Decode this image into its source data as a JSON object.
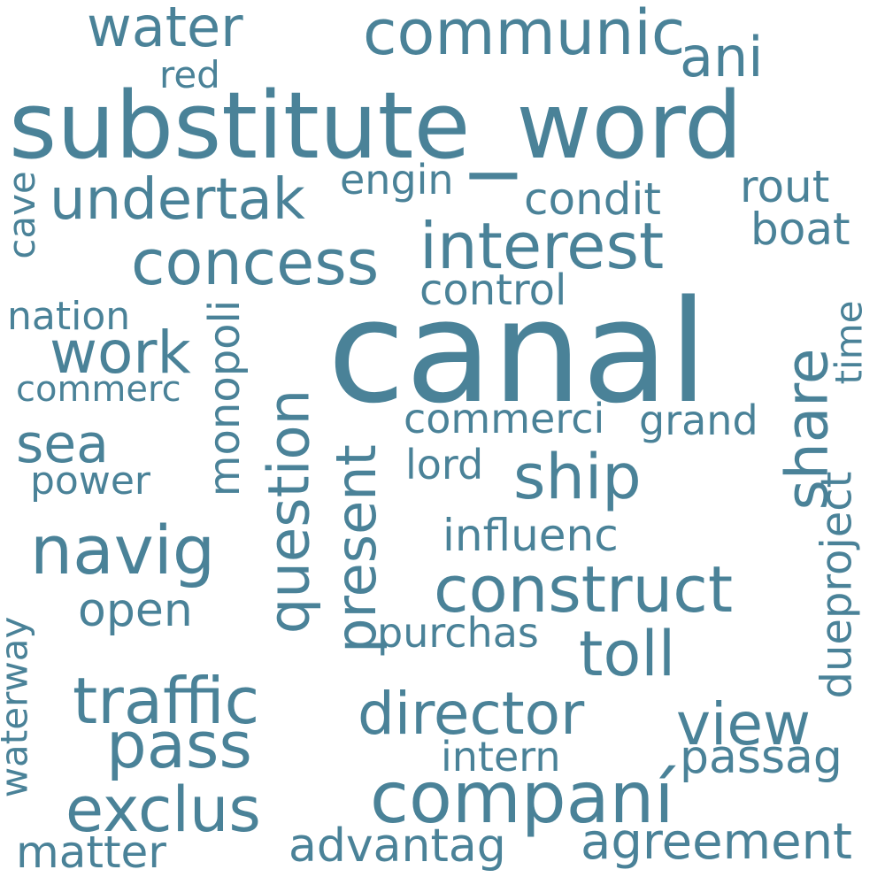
{
  "color": "#4a8298",
  "words": [
    {
      "text": "canal",
      "orientation": "horizontal"
    },
    {
      "text": "substitute_word",
      "orientation": "horizontal"
    },
    {
      "text": "companí",
      "orientation": "horizontal"
    },
    {
      "text": "communic",
      "orientation": "horizontal"
    },
    {
      "text": "water",
      "orientation": "horizontal"
    },
    {
      "text": "ani",
      "orientation": "horizontal"
    },
    {
      "text": "red",
      "orientation": "horizontal"
    },
    {
      "text": "engin",
      "orientation": "horizontal"
    },
    {
      "text": "undertak",
      "orientation": "horizontal"
    },
    {
      "text": "condit",
      "orientation": "horizontal"
    },
    {
      "text": "rout",
      "orientation": "horizontal"
    },
    {
      "text": "boat",
      "orientation": "horizontal"
    },
    {
      "text": "interest",
      "orientation": "horizontal"
    },
    {
      "text": "concess",
      "orientation": "horizontal"
    },
    {
      "text": "control",
      "orientation": "horizontal"
    },
    {
      "text": "nation",
      "orientation": "horizontal"
    },
    {
      "text": "work",
      "orientation": "horizontal"
    },
    {
      "text": "commerc",
      "orientation": "horizontal"
    },
    {
      "text": "sea",
      "orientation": "horizontal"
    },
    {
      "text": "power",
      "orientation": "horizontal"
    },
    {
      "text": "commerci",
      "orientation": "horizontal"
    },
    {
      "text": "grand",
      "orientation": "horizontal"
    },
    {
      "text": "lord",
      "orientation": "horizontal"
    },
    {
      "text": "ship",
      "orientation": "horizontal"
    },
    {
      "text": "navig",
      "orientation": "horizontal"
    },
    {
      "text": "influenc",
      "orientation": "horizontal"
    },
    {
      "text": "construct",
      "orientation": "horizontal"
    },
    {
      "text": "open",
      "orientation": "horizontal"
    },
    {
      "text": "purchas",
      "orientation": "horizontal"
    },
    {
      "text": "toll",
      "orientation": "horizontal"
    },
    {
      "text": "traffic",
      "orientation": "horizontal"
    },
    {
      "text": "director",
      "orientation": "horizontal"
    },
    {
      "text": "view",
      "orientation": "horizontal"
    },
    {
      "text": "pass",
      "orientation": "horizontal"
    },
    {
      "text": "intern",
      "orientation": "horizontal"
    },
    {
      "text": "passag",
      "orientation": "horizontal"
    },
    {
      "text": "exclus",
      "orientation": "horizontal"
    },
    {
      "text": "agreement",
      "orientation": "horizontal"
    },
    {
      "text": "matter",
      "orientation": "horizontal"
    },
    {
      "text": "advantag",
      "orientation": "horizontal"
    },
    {
      "text": "cave",
      "orientation": "vertical"
    },
    {
      "text": "monopoli",
      "orientation": "vertical"
    },
    {
      "text": "question",
      "orientation": "vertical"
    },
    {
      "text": "present",
      "orientation": "vertical"
    },
    {
      "text": "share",
      "orientation": "vertical"
    },
    {
      "text": "time",
      "orientation": "vertical"
    },
    {
      "text": "dueproject",
      "orientation": "vertical"
    },
    {
      "text": "waterway",
      "orientation": "vertical"
    }
  ]
}
